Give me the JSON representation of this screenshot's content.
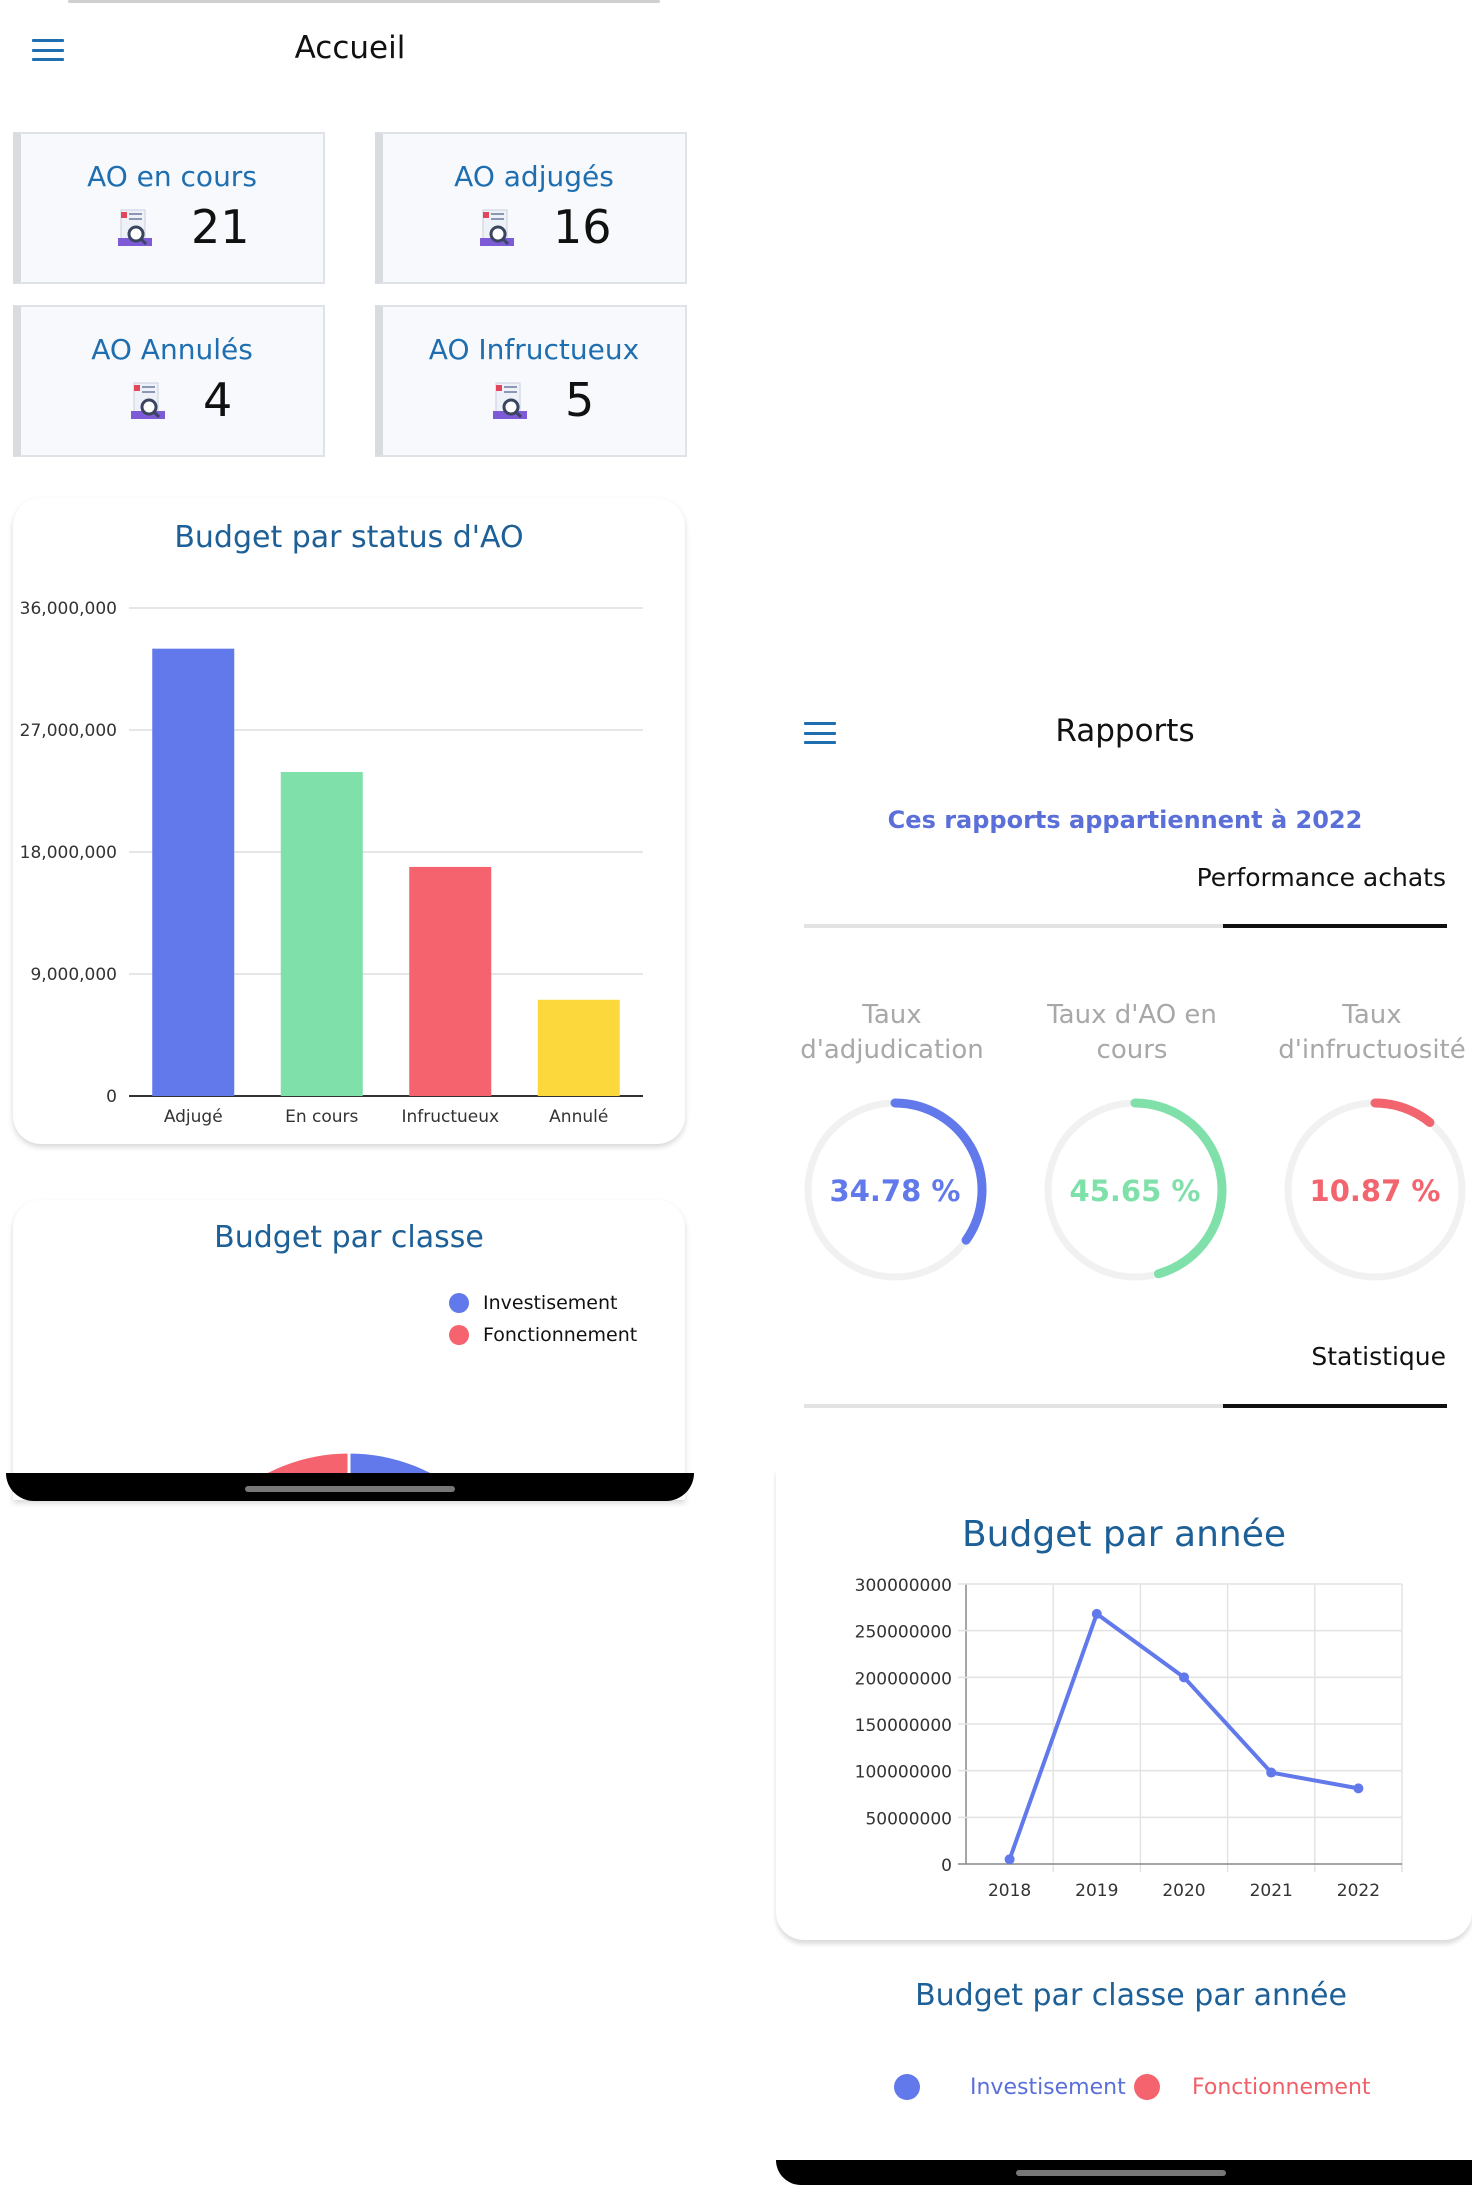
{
  "accueil": {
    "title": "Accueil",
    "cards": [
      {
        "label": "AO en cours",
        "value": "21"
      },
      {
        "label": "AO adjugés",
        "value": "16"
      },
      {
        "label": "AO Annulés",
        "value": "4"
      },
      {
        "label": "AO Infructueux",
        "value": "5"
      }
    ],
    "budget_status_title": "Budget par status d'AO",
    "budget_classe_title": "Budget par classe",
    "legend": [
      "Investisement",
      "Fonctionnement"
    ]
  },
  "rapports": {
    "title": "Rapports",
    "subtitle": "Ces rapports appartiennent à 2022",
    "tab_performance": "Performance achats",
    "tab_statistique": "Statistique",
    "gauges": [
      {
        "label": "Taux d'adjudication",
        "value_text": "34.78 %",
        "value": 34.78,
        "color": "#6179ea"
      },
      {
        "label": "Taux d'AO en cours",
        "value_text": "45.65 %",
        "value": 45.65,
        "color": "#7fe0aa"
      },
      {
        "label": "Taux d'infructuosité",
        "value_text": "10.87 %",
        "value": 10.87,
        "color": "#f2646e"
      }
    ],
    "budget_annee_title": "Budget par année",
    "budget_classe_annee_title": "Budget par classe par année",
    "legend": [
      "Investisement",
      "Fonctionnement"
    ]
  },
  "colors": {
    "blue": "#6179ea",
    "green": "#7fe0aa",
    "red": "#f5646e",
    "yellow": "#fdd83c",
    "title_blue": "#1d5f97"
  },
  "chart_data": [
    {
      "type": "bar",
      "title": "Budget par status d'AO",
      "categories": [
        "Adjugé",
        "En cours",
        "Infructueux",
        "Annulé"
      ],
      "values": [
        33000000,
        23900000,
        16900000,
        7100000
      ],
      "colors": [
        "#6179ea",
        "#7fe0aa",
        "#f5646e",
        "#fdd83c"
      ],
      "ylim": [
        0,
        36000000
      ],
      "yticks": [
        "0",
        "9,000,000",
        "18,000,000",
        "27,000,000",
        "36,000,000"
      ],
      "grid": true
    },
    {
      "type": "pie",
      "title": "Budget par classe",
      "labels": [
        "Investisement",
        "Fonctionnement"
      ],
      "values": [
        50,
        50
      ],
      "colors": [
        "#6179ea",
        "#f5646e"
      ],
      "legend": "top-right"
    },
    {
      "type": "line",
      "title": "Budget par année",
      "x": [
        "2018",
        "2019",
        "2020",
        "2021",
        "2022"
      ],
      "values": [
        5000000,
        268000000,
        200000000,
        98000000,
        81000000
      ],
      "color": "#6179ea",
      "ylim": [
        0,
        300000000
      ],
      "yticks": [
        "0",
        "50000000",
        "100000000",
        "150000000",
        "200000000",
        "250000000",
        "300000000"
      ],
      "grid": true
    }
  ]
}
